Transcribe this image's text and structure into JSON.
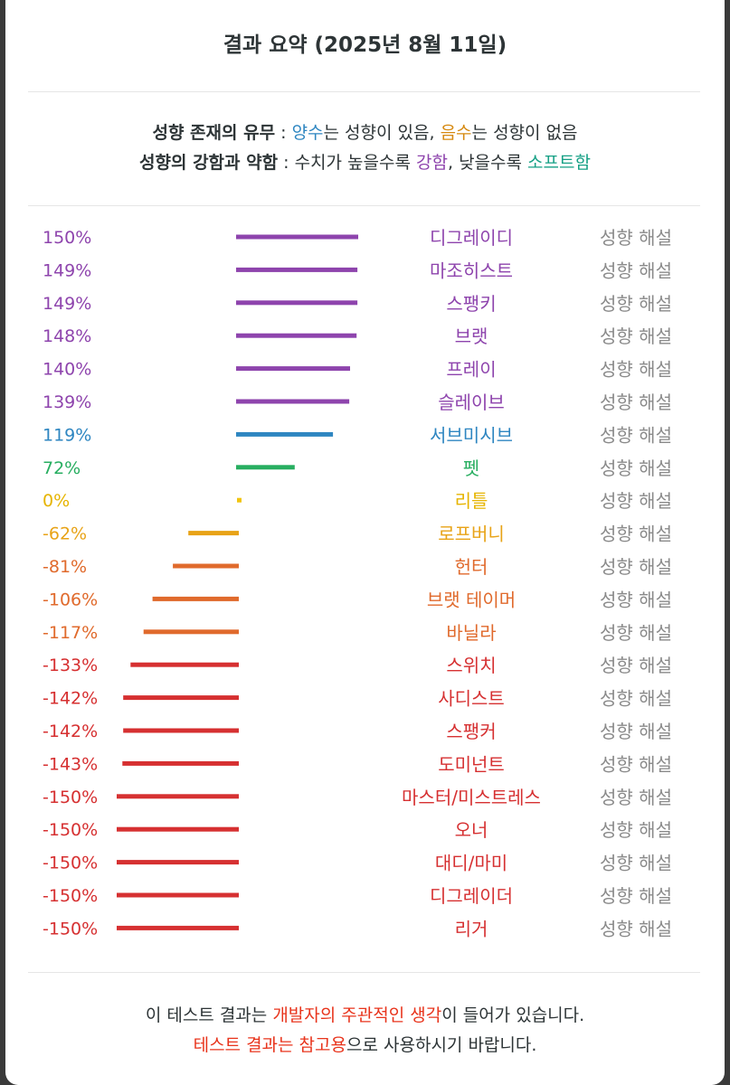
{
  "title": "결과 요약 (2025년 8월 11일)",
  "legend": {
    "line1": {
      "label": "성향 존재의 유무",
      "sep": " : ",
      "positive": "양수",
      "text1": "는 성향이 있음, ",
      "negative": "음수",
      "text2": "는 성향이 없음"
    },
    "line2": {
      "label": "성향의 강함과 약함",
      "sep": " : ",
      "text1": "수치가 높을수록 ",
      "strong": "강함",
      "text2": ", 낮을수록 ",
      "soft": "소프트함"
    }
  },
  "colors": {
    "purple": "#8e44ad",
    "blue": "#2e86c1",
    "green": "#27ae60",
    "yellow": "#f1c40f",
    "orange": "#e8a317",
    "dark_orange": "#e06a2c",
    "red": "#d63031",
    "gray_link": "#8a8a8a"
  },
  "chart_data": {
    "type": "bar",
    "orientation": "horizontal-diverging",
    "unit": "%",
    "categories": [
      "디그레이디",
      "마조히스트",
      "스팽키",
      "브랫",
      "프레이",
      "슬레이브",
      "서브미시브",
      "펫",
      "리틀",
      "로프버니",
      "헌터",
      "브랫 테이머",
      "바닐라",
      "스위치",
      "사디스트",
      "스팽커",
      "도미넌트",
      "마스터/미스트레스",
      "오너",
      "대디/마미",
      "디그레이더",
      "리거"
    ],
    "values": [
      150,
      149,
      149,
      148,
      140,
      139,
      119,
      72,
      0,
      -62,
      -81,
      -106,
      -117,
      -133,
      -142,
      -142,
      -143,
      -150,
      -150,
      -150,
      -150,
      -150
    ],
    "value_labels": [
      "150%",
      "149%",
      "149%",
      "148%",
      "140%",
      "139%",
      "119%",
      "72%",
      "0%",
      "-62%",
      "-81%",
      "-106%",
      "-117%",
      "-133%",
      "-142%",
      "-142%",
      "-143%",
      "-150%",
      "-150%",
      "-150%",
      "-150%",
      "-150%"
    ],
    "bar_colors": [
      "#8e44ad",
      "#8e44ad",
      "#8e44ad",
      "#8e44ad",
      "#8e44ad",
      "#8e44ad",
      "#2e86c1",
      "#27ae60",
      "#f1c40f",
      "#e8a317",
      "#e06a2c",
      "#e06a2c",
      "#e06a2c",
      "#d63031",
      "#d63031",
      "#d63031",
      "#d63031",
      "#d63031",
      "#d63031",
      "#d63031",
      "#d63031",
      "#d63031"
    ],
    "label_colors": [
      "#8e44ad",
      "#8e44ad",
      "#8e44ad",
      "#8e44ad",
      "#8e44ad",
      "#8e44ad",
      "#2e86c1",
      "#27ae60",
      "#e6b400",
      "#e8a317",
      "#e06a2c",
      "#e06a2c",
      "#e06a2c",
      "#d63031",
      "#d63031",
      "#d63031",
      "#d63031",
      "#d63031",
      "#d63031",
      "#d63031",
      "#d63031",
      "#d63031"
    ],
    "link_label": "성향 해설",
    "xlim": [
      -150,
      150
    ]
  },
  "footer": {
    "line1_a": "이 테스트 결과는 ",
    "line1_b": "개발자의 주관적인 생각",
    "line1_c": "이 들어가 있습니다.",
    "line2_a": "테스트 결과는 참고용",
    "line2_b": "으로 사용하시기 바랍니다."
  }
}
